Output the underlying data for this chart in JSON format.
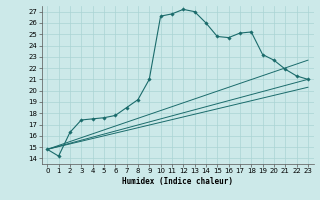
{
  "xlabel": "Humidex (Indice chaleur)",
  "xlim": [
    -0.5,
    23.5
  ],
  "ylim": [
    13.5,
    27.5
  ],
  "yticks": [
    14,
    15,
    16,
    17,
    18,
    19,
    20,
    21,
    22,
    23,
    24,
    25,
    26,
    27
  ],
  "xticks": [
    0,
    1,
    2,
    3,
    4,
    5,
    6,
    7,
    8,
    9,
    10,
    11,
    12,
    13,
    14,
    15,
    16,
    17,
    18,
    19,
    20,
    21,
    22,
    23
  ],
  "bg_color": "#cce9e9",
  "grid_color": "#aad4d4",
  "line_color": "#1a6b6b",
  "main_series": [
    14.8,
    14.2,
    16.3,
    17.4,
    17.5,
    17.6,
    17.8,
    18.5,
    19.2,
    21.0,
    26.6,
    26.8,
    27.2,
    27.0,
    26.0,
    24.8,
    24.7,
    25.1,
    25.2,
    23.2,
    22.7,
    21.9,
    21.3,
    21.0
  ],
  "fan_lines": [
    {
      "x0": 2,
      "y0": 16.3,
      "x1": 23,
      "y1": 21.0
    },
    {
      "x0": 2,
      "y0": 16.3,
      "x1": 23,
      "y1": 22.7
    },
    {
      "x0": 2,
      "y0": 16.3,
      "x1": 23,
      "y1": 20.0
    }
  ]
}
